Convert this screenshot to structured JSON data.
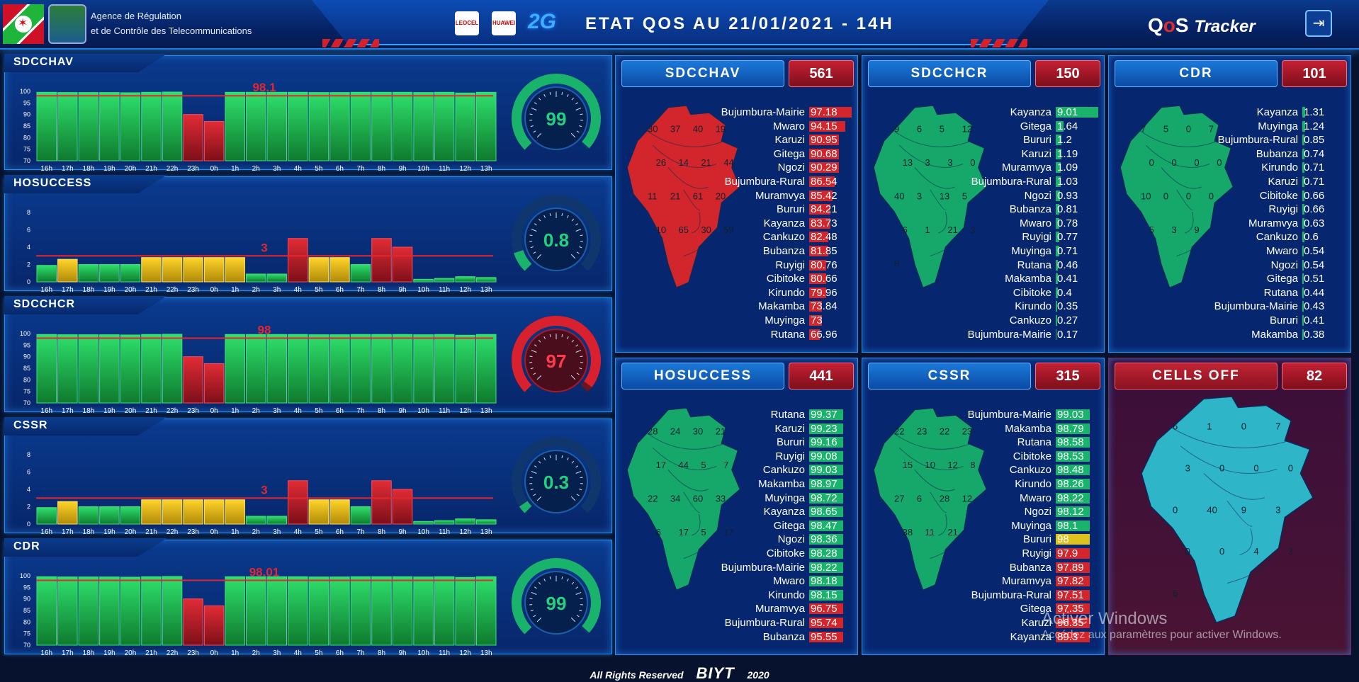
{
  "header": {
    "agency_line1": "Agence de Régulation",
    "agency_line2": "et de Contrôle des Telecommunications",
    "operator_logo_1": "LEOCEL",
    "operator_logo_2": "HUAWEI",
    "technology": "2G",
    "title": "ETAT QOS AU  21/01/2021 - 14H",
    "app_logo_q": "Q",
    "app_logo_o": "o",
    "app_logo_s": "S",
    "app_logo_tracker": "Tracker",
    "exit_icon": "exit-icon"
  },
  "hours": [
    "16h",
    "17h",
    "18h",
    "19h",
    "20h",
    "21h",
    "22h",
    "23h",
    "0h",
    "1h",
    "2h",
    "3h",
    "4h",
    "5h",
    "6h",
    "7h",
    "8h",
    "9h",
    "10h",
    "11h",
    "12h",
    "13h"
  ],
  "panels": [
    {
      "title": "SDCCHAV",
      "type": "pct",
      "threshold": 98.1,
      "threshold_label": "98.1",
      "yticks": [
        "100",
        "95",
        "90",
        "85",
        "80",
        "75",
        "70"
      ],
      "values": [
        99.6,
        99.5,
        99.5,
        99.5,
        99.4,
        99.6,
        99.7,
        90.0,
        87.0,
        99.6,
        99.6,
        99.6,
        99.6,
        99.5,
        99.5,
        99.6,
        99.6,
        99.6,
        99.5,
        99.6,
        99.3,
        99.6
      ],
      "gauge_value": "99",
      "gauge_level": 0.99,
      "gauge_color": "#19b36b"
    },
    {
      "title": "HOSUCCESS",
      "type": "cnt",
      "threshold": 3,
      "threshold_label": "3",
      "yticks": [
        "8",
        "6",
        "4",
        "2",
        "0"
      ],
      "values": [
        1.9,
        2.6,
        2.0,
        2.0,
        2.0,
        2.8,
        2.8,
        2.8,
        2.8,
        2.8,
        0.9,
        0.9,
        5.0,
        2.8,
        2.8,
        2.0,
        5.0,
        4.0,
        0.3,
        0.4,
        0.6,
        0.5
      ],
      "gauge_value": "0.8",
      "gauge_level": 0.1,
      "gauge_color": "#19b36b"
    },
    {
      "title": "SDCCHCR",
      "type": "pct",
      "threshold": 98,
      "threshold_label": "98",
      "yticks": [
        "100",
        "95",
        "90",
        "85",
        "80",
        "75",
        "70"
      ],
      "values": [
        99.6,
        99.5,
        99.5,
        99.5,
        99.4,
        99.6,
        99.7,
        90.0,
        87.0,
        99.6,
        99.6,
        99.6,
        99.6,
        99.5,
        99.5,
        99.6,
        99.6,
        99.6,
        99.5,
        99.6,
        99.3,
        99.6
      ],
      "gauge_value": "97",
      "gauge_level": 0.97,
      "gauge_color": "#d8202f"
    },
    {
      "title": "CSSR",
      "type": "cnt",
      "threshold": 3,
      "threshold_label": "3",
      "yticks": [
        "8",
        "6",
        "4",
        "2",
        "0"
      ],
      "values": [
        1.9,
        2.6,
        2.0,
        2.0,
        2.0,
        2.8,
        2.8,
        2.8,
        2.8,
        2.8,
        0.9,
        0.9,
        5.0,
        2.8,
        2.8,
        2.0,
        5.0,
        4.0,
        0.3,
        0.4,
        0.6,
        0.5
      ],
      "gauge_value": "0.3",
      "gauge_level": 0.04,
      "gauge_color": "#19b36b"
    },
    {
      "title": "CDR",
      "type": "pct",
      "threshold": 98.01,
      "threshold_label": "98.01",
      "yticks": [
        "100",
        "95",
        "90",
        "85",
        "80",
        "75",
        "70"
      ],
      "values": [
        99.6,
        99.5,
        99.5,
        99.5,
        99.4,
        99.6,
        99.7,
        90.0,
        87.0,
        99.6,
        99.6,
        99.6,
        99.6,
        99.5,
        99.5,
        99.6,
        99.6,
        99.6,
        99.5,
        99.6,
        99.3,
        99.6
      ],
      "gauge_value": "99",
      "gauge_level": 0.99,
      "gauge_color": "#19b36b"
    }
  ],
  "kpis": [
    {
      "title": "SDCCHAV",
      "count": "561",
      "map_color": "#d2262c",
      "map_labels": [
        "30",
        "37",
        "40",
        "19",
        "26",
        "14",
        "21",
        "44",
        "11",
        "21",
        "61",
        "20",
        "10",
        "65",
        "30",
        "59"
      ],
      "rows": [
        [
          "Bujumbura-Mairie",
          "97.18"
        ],
        [
          "Mwaro",
          "94.15"
        ],
        [
          "Karuzi",
          "90.95"
        ],
        [
          "Gitega",
          "90.68"
        ],
        [
          "Ngozi",
          "90.29"
        ],
        [
          "Bujumbura-Rural",
          "86.54"
        ],
        [
          "Muramvya",
          "85.42"
        ],
        [
          "Bururi",
          "84.21"
        ],
        [
          "Kayanza",
          "83.73"
        ],
        [
          "Cankuzo",
          "82.48"
        ],
        [
          "Bubanza",
          "81.85"
        ],
        [
          "Ruyigi",
          "80.76"
        ],
        [
          "Cibitoke",
          "80.66"
        ],
        [
          "Kirundo",
          "79.96"
        ],
        [
          "Makamba",
          "73.84"
        ],
        [
          "Muyinga",
          "73"
        ],
        [
          "Rutana",
          "66.96"
        ]
      ],
      "bar_color": "#d2262c",
      "bar_levels": [
        1,
        0.85,
        0.7,
        0.7,
        0.7,
        0.6,
        0.55,
        0.5,
        0.5,
        0.45,
        0.45,
        0.4,
        0.4,
        0.4,
        0.3,
        0.3,
        0.25
      ]
    },
    {
      "title": "SDCCHCR",
      "count": "150",
      "map_color": "#16a86a",
      "map_labels": [
        "9",
        "6",
        "5",
        "12",
        "13",
        "3",
        "3",
        "0",
        "40",
        "3",
        "13",
        "5",
        "6",
        "1",
        "21",
        "3",
        "8"
      ],
      "rows": [
        [
          "Kayanza",
          "9.01"
        ],
        [
          "Gitega",
          "1.64"
        ],
        [
          "Bururi",
          "1.2"
        ],
        [
          "Karuzi",
          "1.19"
        ],
        [
          "Muramvya",
          "1.09"
        ],
        [
          "Bujumbura-Rural",
          "1.03"
        ],
        [
          "Ngozi",
          "0.93"
        ],
        [
          "Bubanza",
          "0.81"
        ],
        [
          "Mwaro",
          "0.78"
        ],
        [
          "Ruyigi",
          "0.77"
        ],
        [
          "Muyinga",
          "0.71"
        ],
        [
          "Rutana",
          "0.46"
        ],
        [
          "Makamba",
          "0.41"
        ],
        [
          "Cibitoke",
          "0.4"
        ],
        [
          "Kirundo",
          "0.35"
        ],
        [
          "Cankuzo",
          "0.27"
        ],
        [
          "Bujumbura-Mairie",
          "0.17"
        ]
      ],
      "bar_color": "#19b36b",
      "bar_levels": [
        1,
        0.18,
        0.13,
        0.13,
        0.12,
        0.11,
        0.1,
        0.09,
        0.09,
        0.09,
        0.08,
        0.05,
        0.05,
        0.05,
        0.04,
        0.03,
        0.02
      ]
    },
    {
      "title": "CDR",
      "count": "101",
      "map_color": "#16a86a",
      "map_labels": [
        "7",
        "5",
        "0",
        "7",
        "0",
        "0",
        "0",
        "0",
        "10",
        "0",
        "0",
        "0",
        "5",
        "3",
        "9"
      ],
      "rows": [
        [
          "Kayanza",
          "1.31"
        ],
        [
          "Muyinga",
          "1.24"
        ],
        [
          "Bujumbura-Rural",
          "0.85"
        ],
        [
          "Bubanza",
          "0.74"
        ],
        [
          "Kirundo",
          "0.71"
        ],
        [
          "Karuzi",
          "0.71"
        ],
        [
          "Cibitoke",
          "0.66"
        ],
        [
          "Ruyigi",
          "0.66"
        ],
        [
          "Muramvya",
          "0.63"
        ],
        [
          "Cankuzo",
          "0.6"
        ],
        [
          "Mwaro",
          "0.54"
        ],
        [
          "Ngozi",
          "0.54"
        ],
        [
          "Gitega",
          "0.51"
        ],
        [
          "Rutana",
          "0.44"
        ],
        [
          "Bujumbura-Mairie",
          "0.43"
        ],
        [
          "Bururi",
          "0.41"
        ],
        [
          "Makamba",
          "0.38"
        ]
      ],
      "bar_color": "#19b36b",
      "bar_levels": [
        0.06,
        0.06,
        0.05,
        0.05,
        0.05,
        0.05,
        0.05,
        0.05,
        0.05,
        0.05,
        0.04,
        0.04,
        0.04,
        0.04,
        0.04,
        0.04,
        0.04
      ]
    },
    {
      "title": "HOSUCCESS",
      "count": "441",
      "map_color": "#16a86a",
      "map_labels": [
        "28",
        "24",
        "30",
        "21",
        "17",
        "44",
        "5",
        "7",
        "22",
        "34",
        "60",
        "33",
        "6",
        "17",
        "5",
        "17"
      ],
      "rows": [
        [
          "Rutana",
          "99.37"
        ],
        [
          "Karuzi",
          "99.23"
        ],
        [
          "Bururi",
          "99.16"
        ],
        [
          "Ruyigi",
          "99.08"
        ],
        [
          "Cankuzo",
          "99.03"
        ],
        [
          "Makamba",
          "98.97"
        ],
        [
          "Muyinga",
          "98.72"
        ],
        [
          "Kayanza",
          "98.65"
        ],
        [
          "Gitega",
          "98.47"
        ],
        [
          "Ngozi",
          "98.36"
        ],
        [
          "Cibitoke",
          "98.28"
        ],
        [
          "Bujumbura-Mairie",
          "98.22"
        ],
        [
          "Mwaro",
          "98.18"
        ],
        [
          "Kirundo",
          "98.15"
        ],
        [
          "Muramvya",
          "96.75"
        ],
        [
          "Bujumbura-Rural",
          "95.74"
        ],
        [
          "Bubanza",
          "95.55"
        ]
      ],
      "bar_colors": [
        "#19b36b",
        "#19b36b",
        "#19b36b",
        "#19b36b",
        "#19b36b",
        "#19b36b",
        "#19b36b",
        "#19b36b",
        "#19b36b",
        "#19b36b",
        "#19b36b",
        "#19b36b",
        "#19b36b",
        "#19b36b",
        "#d2262c",
        "#d2262c",
        "#d2262c"
      ],
      "bar_levels": [
        0.8,
        0.8,
        0.8,
        0.8,
        0.8,
        0.8,
        0.8,
        0.8,
        0.8,
        0.8,
        0.8,
        0.8,
        0.8,
        0.8,
        0.8,
        0.8,
        0.8
      ]
    },
    {
      "title": "CSSR",
      "count": "315",
      "map_color": "#16a86a",
      "map_labels": [
        "22",
        "23",
        "22",
        "23",
        "15",
        "10",
        "12",
        "8",
        "27",
        "6",
        "28",
        "12",
        "38",
        "11",
        "21"
      ],
      "rows": [
        [
          "Bujumbura-Mairie",
          "99.03"
        ],
        [
          "Makamba",
          "98.79"
        ],
        [
          "Rutana",
          "98.58"
        ],
        [
          "Cibitoke",
          "98.53"
        ],
        [
          "Cankuzo",
          "98.48"
        ],
        [
          "Kirundo",
          "98.26"
        ],
        [
          "Mwaro",
          "98.22"
        ],
        [
          "Ngozi",
          "98.12"
        ],
        [
          "Muyinga",
          "98.1"
        ],
        [
          "Bururi",
          "98"
        ],
        [
          "Ruyigi",
          "97.9"
        ],
        [
          "Bubanza",
          "97.89"
        ],
        [
          "Muramvya",
          "97.82"
        ],
        [
          "Bujumbura-Rural",
          "97.51"
        ],
        [
          "Gitega",
          "97.35"
        ],
        [
          "Karuzi",
          "96.35"
        ],
        [
          "Kayanza",
          "89.3"
        ]
      ],
      "bar_colors": [
        "#19b36b",
        "#19b36b",
        "#19b36b",
        "#19b36b",
        "#19b36b",
        "#19b36b",
        "#19b36b",
        "#19b36b",
        "#19b36b",
        "#e0c21f",
        "#d2262c",
        "#d2262c",
        "#d2262c",
        "#d2262c",
        "#d2262c",
        "#d2262c",
        "#d2262c"
      ],
      "bar_levels": [
        0.8,
        0.8,
        0.8,
        0.8,
        0.8,
        0.8,
        0.8,
        0.8,
        0.8,
        0.8,
        0.8,
        0.8,
        0.8,
        0.8,
        0.8,
        0.8,
        0.8
      ]
    },
    {
      "title": "CELLS OFF",
      "count": "82",
      "map_color": "#2fb5c8",
      "map_labels": [
        "6",
        "1",
        "0",
        "7",
        "3",
        "0",
        "0",
        "0",
        "0",
        "40",
        "9",
        "3",
        "0",
        "0",
        "4",
        "3",
        "6"
      ],
      "rows": [],
      "alert": true
    }
  ],
  "footer": {
    "text": "All Rights Reserved",
    "brand": "BIYT",
    "year": "2020"
  },
  "watermark": {
    "line1": "Activer Windows",
    "line2": "Accédez aux paramètres pour activer Windows."
  },
  "colors": {
    "good": "#19b36b",
    "bad": "#d2262c",
    "warn": "#e0c21f",
    "accent": "#1a7fe0"
  }
}
